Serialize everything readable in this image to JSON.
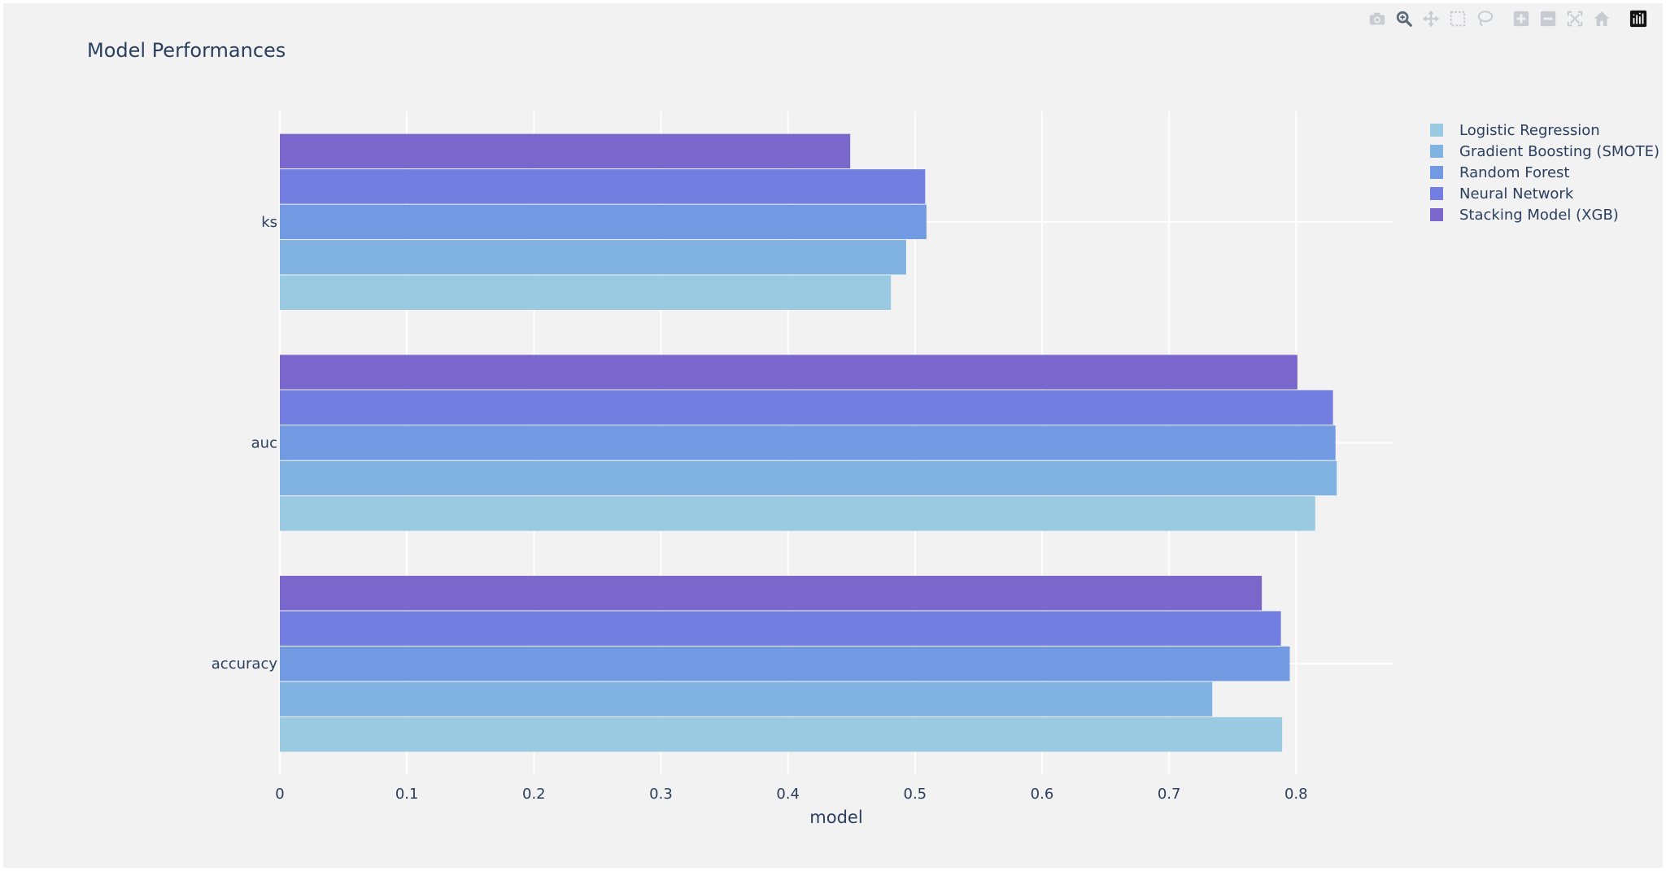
{
  "chart_data": {
    "type": "bar",
    "orientation": "horizontal",
    "barmode": "group",
    "title": "Model Performances",
    "xlabel": "model",
    "ylabel": "",
    "xlim": [
      0,
      0.876
    ],
    "x_ticks": [
      "0",
      "0.1",
      "0.2",
      "0.3",
      "0.4",
      "0.5",
      "0.6",
      "0.7",
      "0.8"
    ],
    "categories": [
      "accuracy",
      "auc",
      "ks"
    ],
    "series": [
      {
        "name": "Logistic Regression",
        "color": "#9ac9e2",
        "values": [
          0.789,
          0.815,
          0.481
        ]
      },
      {
        "name": "Gradient Boosting (SMOTE)",
        "color": "#81b3e2",
        "values": [
          0.734,
          0.832,
          0.493
        ]
      },
      {
        "name": "Random Forest",
        "color": "#729ae3",
        "values": [
          0.795,
          0.831,
          0.509
        ]
      },
      {
        "name": "Neural Network",
        "color": "#737fe0",
        "values": [
          0.788,
          0.829,
          0.508
        ]
      },
      {
        "name": "Stacking Model (XGB)",
        "color": "#7967cc",
        "values": [
          0.773,
          0.801,
          0.449
        ]
      }
    ],
    "grid": true,
    "legend_position": "top-right"
  },
  "modebar": {
    "buttons": [
      "camera-icon",
      "zoom-icon",
      "pan-icon",
      "box-select-icon",
      "lasso-select-icon",
      "zoom-in-icon",
      "zoom-out-icon",
      "autoscale-icon",
      "reset-axes-icon",
      "plotly-logo-icon"
    ]
  }
}
